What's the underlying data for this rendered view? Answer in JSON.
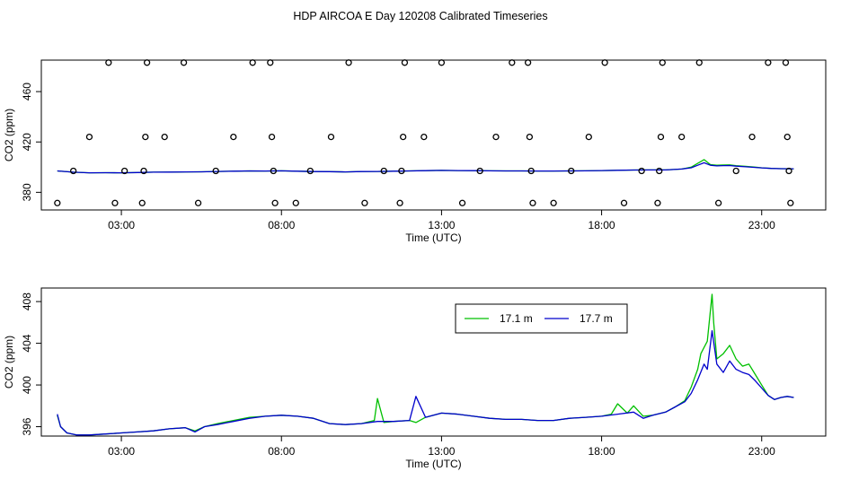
{
  "figure": {
    "title": "HDP AIRCOA E  Day 120208  Calibrated Timeseries"
  },
  "colors": {
    "series_green": "#00c000",
    "series_blue": "#0000cc",
    "points": "#000000",
    "axis": "#000000"
  },
  "chart_data": [
    {
      "type": "scatter",
      "title": "",
      "xlabel": "Time (UTC)",
      "ylabel": "CO2 (ppm)",
      "xlim": [
        0.5,
        25.0
      ],
      "ylim": [
        366,
        485
      ],
      "x_ticks": [
        3,
        8,
        13,
        18,
        23
      ],
      "x_tick_labels": [
        "03:00",
        "08:00",
        "13:00",
        "18:00",
        "23:00"
      ],
      "y_ticks": [
        380,
        420,
        460
      ],
      "y_tick_labels": [
        "380",
        "420",
        "460"
      ],
      "grid": false,
      "points": [
        [
          1.0,
          371.5
        ],
        [
          1.5,
          397
        ],
        [
          2.0,
          424
        ],
        [
          2.6,
          483
        ],
        [
          2.8,
          371.5
        ],
        [
          3.1,
          397
        ],
        [
          3.65,
          371.5
        ],
        [
          3.7,
          397
        ],
        [
          3.75,
          424
        ],
        [
          3.8,
          483
        ],
        [
          4.35,
          424
        ],
        [
          4.95,
          483
        ],
        [
          5.4,
          371.5
        ],
        [
          5.95,
          397
        ],
        [
          6.5,
          424
        ],
        [
          7.1,
          483
        ],
        [
          7.65,
          483
        ],
        [
          7.7,
          424
        ],
        [
          7.75,
          397
        ],
        [
          7.8,
          371.5
        ],
        [
          8.45,
          371.5
        ],
        [
          8.9,
          397
        ],
        [
          9.55,
          424
        ],
        [
          10.1,
          483
        ],
        [
          10.6,
          371.5
        ],
        [
          11.2,
          397
        ],
        [
          11.7,
          371.5
        ],
        [
          11.75,
          397
        ],
        [
          11.8,
          424
        ],
        [
          11.85,
          483
        ],
        [
          12.45,
          424
        ],
        [
          13.0,
          483
        ],
        [
          13.65,
          371.5
        ],
        [
          14.2,
          397
        ],
        [
          14.7,
          424
        ],
        [
          15.2,
          483
        ],
        [
          15.7,
          483
        ],
        [
          15.75,
          424
        ],
        [
          15.8,
          397
        ],
        [
          15.85,
          371.5
        ],
        [
          16.5,
          371.5
        ],
        [
          17.05,
          397
        ],
        [
          17.6,
          424
        ],
        [
          18.1,
          483
        ],
        [
          18.7,
          371.5
        ],
        [
          19.25,
          397
        ],
        [
          19.75,
          371.5
        ],
        [
          19.8,
          397
        ],
        [
          19.85,
          424
        ],
        [
          19.9,
          483
        ],
        [
          20.5,
          424
        ],
        [
          21.05,
          483
        ],
        [
          21.65,
          371.5
        ],
        [
          22.2,
          397
        ],
        [
          22.7,
          424
        ],
        [
          23.2,
          483
        ],
        [
          23.75,
          483
        ],
        [
          23.8,
          424
        ],
        [
          23.85,
          397
        ],
        [
          23.9,
          371.5
        ]
      ],
      "series": [
        {
          "name": "17.1 m",
          "color": "#00c000",
          "x": [
            1,
            1.5,
            2,
            2.5,
            3,
            3.5,
            4,
            4.5,
            5,
            5.5,
            6,
            6.5,
            7,
            7.5,
            8,
            8.5,
            9,
            9.5,
            10,
            10.5,
            11,
            11.5,
            12,
            12.5,
            13,
            13.5,
            14,
            14.5,
            15,
            15.5,
            16,
            16.5,
            17,
            17.5,
            18,
            18.5,
            19,
            19.5,
            20,
            20.5,
            20.8,
            21,
            21.2,
            21.4,
            21.6,
            21.8,
            22,
            22.2,
            22.5,
            22.8,
            23,
            23.3,
            23.6,
            24
          ],
          "y": [
            397,
            396,
            395.5,
            395.6,
            395.5,
            395.7,
            396,
            396.1,
            396.2,
            396.3,
            396.6,
            396.8,
            397,
            396.9,
            397.1,
            396.8,
            396.5,
            396.4,
            396.2,
            396.5,
            396.6,
            396.8,
            397,
            397.2,
            397.4,
            397.3,
            397.2,
            397.1,
            397.0,
            397.0,
            396.9,
            396.9,
            397.0,
            397.1,
            397.3,
            397.5,
            397.7,
            397.8,
            397.8,
            398.5,
            400,
            403,
            406,
            402,
            401.5,
            401.7,
            401.8,
            401.2,
            400.6,
            400.0,
            399.5,
            399.0,
            398.8,
            398.7
          ]
        },
        {
          "name": "17.7 m",
          "color": "#0000cc",
          "x": [
            1,
            1.5,
            2,
            2.5,
            3,
            3.5,
            4,
            4.5,
            5,
            5.5,
            6,
            6.5,
            7,
            7.5,
            8,
            8.5,
            9,
            9.5,
            10,
            10.5,
            11,
            11.5,
            12,
            12.5,
            13,
            13.5,
            14,
            14.5,
            15,
            15.5,
            16,
            16.5,
            17,
            17.5,
            18,
            18.5,
            19,
            19.5,
            20,
            20.5,
            20.8,
            21,
            21.2,
            21.4,
            21.6,
            21.8,
            22,
            22.2,
            22.5,
            22.8,
            23,
            23.3,
            23.6,
            24
          ],
          "y": [
            397,
            396,
            395.5,
            395.6,
            395.5,
            395.7,
            396,
            396.1,
            396.2,
            396.3,
            396.6,
            396.8,
            397,
            396.9,
            397.1,
            396.8,
            396.5,
            396.4,
            396.2,
            396.5,
            396.6,
            396.8,
            397,
            397.2,
            397.4,
            397.3,
            397.2,
            397.1,
            397.0,
            397.0,
            396.9,
            396.9,
            397.0,
            397.1,
            397.3,
            397.5,
            397.7,
            397.8,
            397.8,
            398.5,
            399.5,
            401.5,
            403.5,
            401.5,
            401.0,
            401.2,
            401.3,
            400.8,
            400.3,
            399.8,
            399.4,
            399.0,
            398.8,
            398.7
          ]
        }
      ]
    },
    {
      "type": "line",
      "title": "",
      "xlabel": "Time (UTC)",
      "ylabel": "CO2 (ppm)",
      "xlim": [
        0.5,
        25.0
      ],
      "ylim": [
        395.1,
        409.3
      ],
      "x_ticks": [
        3,
        8,
        13,
        18,
        23
      ],
      "x_tick_labels": [
        "03:00",
        "08:00",
        "13:00",
        "18:00",
        "23:00"
      ],
      "y_ticks": [
        396,
        400,
        404,
        408
      ],
      "y_tick_labels": [
        "396",
        "400",
        "404",
        "408"
      ],
      "grid": false,
      "legend": "top-right",
      "series": [
        {
          "name": "17.1 m",
          "color": "#00c000",
          "x": [
            1,
            1.1,
            1.3,
            1.6,
            2.0,
            2.5,
            3.0,
            3.5,
            4.0,
            4.5,
            5.0,
            5.3,
            5.6,
            6.0,
            6.5,
            7.0,
            7.5,
            8.0,
            8.5,
            9.0,
            9.5,
            10.0,
            10.5,
            10.9,
            11.0,
            11.2,
            11.5,
            12.0,
            12.2,
            12.5,
            13.0,
            13.5,
            14.0,
            14.5,
            15.0,
            15.5,
            16.0,
            16.5,
            17.0,
            17.5,
            18.0,
            18.3,
            18.5,
            18.8,
            19.0,
            19.3,
            19.6,
            20.0,
            20.3,
            20.6,
            20.8,
            21.0,
            21.1,
            21.3,
            21.45,
            21.5,
            21.6,
            21.8,
            22.0,
            22.2,
            22.4,
            22.6,
            22.8,
            23.0,
            23.2,
            23.4,
            23.6,
            23.8,
            24.0
          ],
          "y": [
            397.1,
            396.0,
            395.4,
            395.2,
            395.2,
            395.3,
            395.4,
            395.5,
            395.6,
            395.8,
            395.9,
            395.6,
            396.0,
            396.3,
            396.6,
            396.9,
            397.0,
            397.1,
            397.0,
            396.8,
            396.3,
            396.2,
            396.3,
            396.6,
            398.7,
            396.4,
            396.5,
            396.6,
            396.4,
            396.9,
            397.3,
            397.2,
            397.0,
            396.8,
            396.7,
            396.7,
            396.6,
            396.6,
            396.8,
            396.9,
            397.0,
            397.2,
            398.2,
            397.3,
            398.0,
            397.0,
            397.1,
            397.4,
            397.9,
            398.5,
            399.8,
            401.5,
            403.0,
            404.2,
            408.7,
            406.0,
            402.5,
            403.0,
            403.8,
            402.5,
            401.8,
            402.0,
            401.0,
            400.0,
            399.0,
            398.6,
            398.8,
            398.9,
            398.8
          ]
        },
        {
          "name": "17.7 m",
          "color": "#0000cc",
          "x": [
            1,
            1.1,
            1.3,
            1.6,
            2.0,
            2.5,
            3.0,
            3.5,
            4.0,
            4.5,
            5.0,
            5.3,
            5.6,
            6.0,
            6.5,
            7.0,
            7.5,
            8.0,
            8.5,
            9.0,
            9.5,
            10.0,
            10.5,
            11.0,
            11.5,
            12.0,
            12.2,
            12.5,
            13.0,
            13.5,
            14.0,
            14.5,
            15.0,
            15.5,
            16.0,
            16.5,
            17.0,
            17.5,
            18.0,
            18.5,
            19.0,
            19.3,
            19.6,
            20.0,
            20.3,
            20.6,
            20.8,
            21.0,
            21.2,
            21.3,
            21.45,
            21.6,
            21.8,
            22.0,
            22.2,
            22.4,
            22.6,
            22.8,
            23.0,
            23.2,
            23.4,
            23.6,
            23.8,
            24.0
          ],
          "y": [
            397.2,
            396.0,
            395.4,
            395.2,
            395.2,
            395.3,
            395.4,
            395.5,
            395.6,
            395.8,
            395.9,
            395.5,
            396.0,
            396.2,
            396.5,
            396.8,
            397.0,
            397.1,
            397.0,
            396.8,
            396.3,
            396.2,
            396.3,
            396.5,
            396.5,
            396.6,
            398.9,
            396.9,
            397.3,
            397.2,
            397.0,
            396.8,
            396.7,
            396.7,
            396.6,
            396.6,
            396.8,
            396.9,
            397.0,
            397.2,
            397.4,
            396.8,
            397.1,
            397.4,
            397.9,
            398.4,
            399.2,
            400.5,
            402.0,
            401.5,
            405.2,
            402.0,
            401.2,
            402.3,
            401.5,
            401.2,
            401.0,
            400.4,
            399.7,
            399.0,
            398.6,
            398.8,
            398.9,
            398.8
          ]
        }
      ]
    }
  ]
}
